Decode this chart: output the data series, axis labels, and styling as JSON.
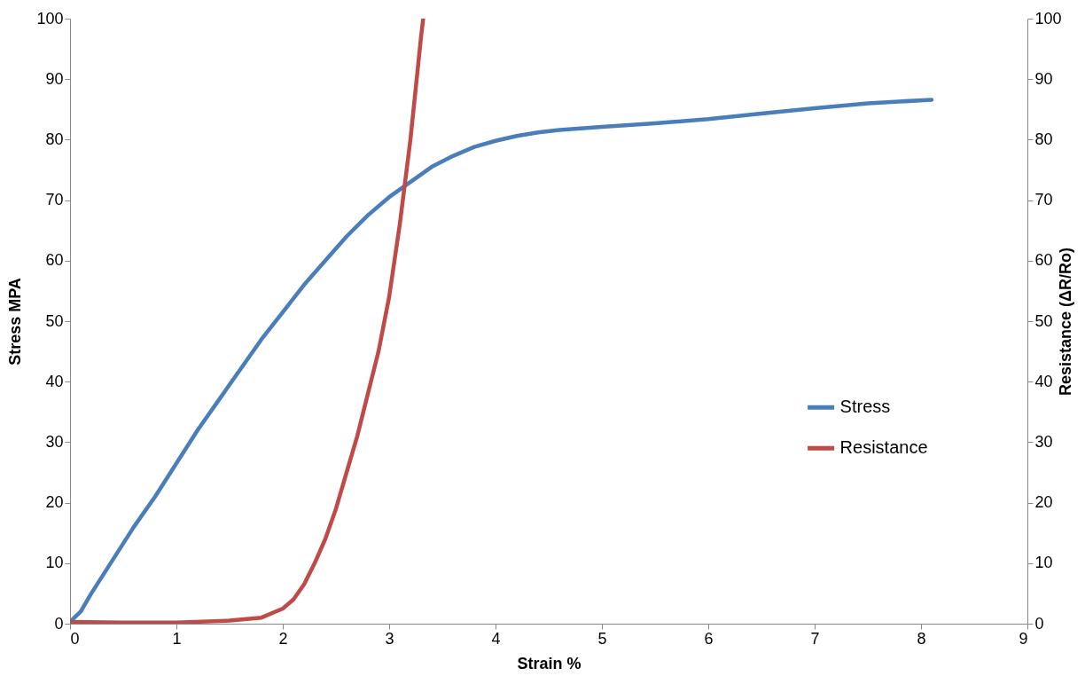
{
  "chart_data": {
    "type": "line",
    "xlabel": "Strain %",
    "ylabel": "Stress MPA",
    "y2label": "Resistance (ΔR/Ro)",
    "xlim": [
      0,
      9
    ],
    "xticks": [
      0,
      1,
      2,
      3,
      4,
      5,
      6,
      7,
      8,
      9
    ],
    "ylim": [
      0,
      100
    ],
    "yticks": [
      0,
      10,
      20,
      30,
      40,
      50,
      60,
      70,
      80,
      90,
      100
    ],
    "y2lim": [
      0,
      100
    ],
    "y2ticks": [
      0,
      10,
      20,
      30,
      40,
      50,
      60,
      70,
      80,
      90,
      100
    ],
    "grid": false,
    "legend": "right",
    "marker": "none",
    "line_style": "solid",
    "series": [
      {
        "name": "Stress",
        "color": "#4a7ebb",
        "x": [
          0,
          0.1,
          0.2,
          0.4,
          0.6,
          0.8,
          1,
          1.2,
          1.4,
          1.6,
          1.8,
          2,
          2.2,
          2.4,
          2.6,
          2.8,
          3,
          3.2,
          3.4,
          3.6,
          3.8,
          4,
          4.2,
          4.4,
          4.6,
          5,
          5.5,
          6,
          6.5,
          7,
          7.5,
          8.1
        ],
        "values": [
          0.3,
          2,
          5,
          10.5,
          16,
          21,
          26.5,
          32,
          37,
          42,
          47,
          51.5,
          56,
          60,
          64,
          67.5,
          70.5,
          73,
          75.5,
          77.3,
          78.8,
          79.8,
          80.6,
          81.2,
          81.6,
          82.1,
          82.7,
          83.4,
          84.3,
          85.2,
          86,
          86.6
        ]
      },
      {
        "name": "Resistance",
        "color": "#be4b48",
        "axis": "y2",
        "x": [
          0,
          0.5,
          1,
          1.5,
          1.8,
          2,
          2.1,
          2.2,
          2.3,
          2.4,
          2.5,
          2.6,
          2.7,
          2.8,
          2.9,
          3,
          3.1,
          3.2,
          3.3,
          3.32
        ],
        "values": [
          0.3,
          0.2,
          0.2,
          0.5,
          1,
          2.5,
          4,
          6.5,
          10,
          14,
          19,
          25,
          31,
          38,
          45,
          54,
          66,
          80,
          97,
          100
        ]
      }
    ]
  }
}
